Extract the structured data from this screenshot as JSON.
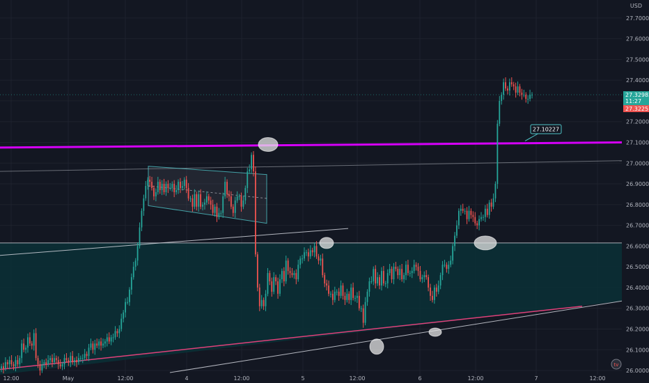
{
  "chart_data": {
    "type": "candlestick",
    "currency": "USD",
    "y_range": [
      25.98,
      27.78
    ],
    "y_ticks": [
      "27.70000",
      "27.60000",
      "27.50000",
      "27.40000",
      "27.30000",
      "27.20000",
      "27.10000",
      "27.00000",
      "26.90000",
      "26.80000",
      "26.70000",
      "26.60000",
      "26.50000",
      "26.40000",
      "26.30000",
      "26.20000",
      "26.10000",
      "26.00000"
    ],
    "x_ticks": [
      "12:00",
      "May",
      "12:00",
      "4",
      "12:00",
      "5",
      "12:00",
      "6",
      "12:00",
      "7",
      "12:00"
    ],
    "grid": true,
    "candles_close": [
      26.02,
      26.01,
      26.04,
      26.03,
      26.05,
      26.03,
      26.02,
      26.05,
      26.03,
      26.06,
      26.13,
      26.1,
      26.11,
      26.16,
      26.13,
      26.12,
      26.18,
      26.06,
      26.03,
      26.0,
      26.03,
      26.04,
      26.03,
      26.05,
      26.06,
      26.04,
      26.06,
      26.05,
      26.03,
      26.02,
      26.03,
      26.06,
      26.05,
      26.04,
      26.07,
      26.04,
      26.05,
      26.04,
      26.06,
      26.06,
      26.06,
      26.08,
      26.07,
      26.11,
      26.13,
      26.1,
      26.13,
      26.12,
      26.14,
      26.12,
      26.13,
      26.14,
      26.16,
      26.14,
      26.16,
      26.16,
      26.19,
      26.18,
      26.2,
      26.25,
      26.28,
      26.33,
      26.33,
      26.39,
      26.45,
      26.5,
      26.53,
      26.6,
      26.69,
      26.77,
      26.83,
      26.89,
      26.92,
      26.91,
      26.88,
      26.84,
      26.86,
      26.91,
      26.87,
      26.9,
      26.86,
      26.9,
      26.88,
      26.88,
      26.9,
      26.86,
      26.87,
      26.91,
      26.88,
      26.89,
      26.92,
      26.88,
      26.83,
      26.83,
      26.79,
      26.85,
      26.79,
      26.85,
      26.79,
      26.8,
      26.81,
      26.84,
      26.82,
      26.8,
      26.76,
      26.79,
      26.74,
      26.76,
      26.76,
      26.84,
      26.91,
      26.85,
      26.84,
      26.79,
      26.76,
      26.82,
      26.84,
      26.84,
      26.79,
      26.82,
      26.88,
      26.96,
      26.97,
      27.04,
      26.96,
      26.56,
      26.4,
      26.31,
      26.34,
      26.31,
      26.37,
      26.47,
      26.43,
      26.38,
      26.45,
      26.43,
      26.37,
      26.44,
      26.48,
      26.43,
      26.53,
      26.48,
      26.47,
      26.46,
      26.47,
      26.44,
      26.51,
      26.54,
      26.54,
      26.57,
      26.57,
      26.55,
      26.58,
      26.57,
      26.6,
      26.55,
      26.53,
      26.54,
      26.46,
      26.42,
      26.41,
      26.37,
      26.37,
      26.34,
      26.38,
      26.38,
      26.36,
      26.41,
      26.36,
      26.34,
      26.37,
      26.34,
      26.4,
      26.35,
      26.35,
      26.36,
      26.3,
      26.3,
      26.23,
      26.33,
      26.38,
      26.43,
      26.43,
      26.49,
      26.42,
      26.45,
      26.41,
      26.48,
      26.42,
      26.42,
      26.47,
      26.49,
      26.44,
      26.5,
      26.49,
      26.46,
      26.49,
      26.44,
      26.46,
      26.51,
      26.47,
      26.47,
      26.48,
      26.51,
      26.5,
      26.48,
      26.44,
      26.45,
      26.46,
      26.45,
      26.4,
      26.36,
      26.34,
      26.4,
      26.38,
      26.41,
      26.46,
      26.51,
      26.51,
      26.49,
      26.51,
      26.53,
      26.6,
      26.65,
      26.7,
      26.77,
      26.78,
      26.77,
      26.77,
      26.73,
      26.77,
      26.75,
      26.74,
      26.71,
      26.7,
      26.73,
      26.74,
      26.74,
      26.78,
      26.75,
      26.81,
      26.79,
      26.83,
      26.9,
      27.19,
      27.3,
      27.33,
      27.39,
      27.36,
      27.35,
      27.39,
      27.38,
      27.37,
      27.34,
      27.37,
      27.34,
      27.33,
      27.33,
      27.31,
      27.31,
      27.33,
      27.33
    ],
    "annotations": {
      "price_line_label": "27.10227",
      "last_price": "27.32983",
      "countdown": "11:27",
      "ask_price": "27.32251"
    }
  },
  "colors": {
    "background": "#131722",
    "grid": "#1e222d",
    "up": "#26a69a",
    "down": "#ef5350",
    "magenta_line": "#d500f9",
    "pink_line": "#e0417a",
    "zone_fill": "#0b3036",
    "axis_text": "#b2b5be",
    "text_on_badge": "#ffffff"
  },
  "logo_text": "tv"
}
